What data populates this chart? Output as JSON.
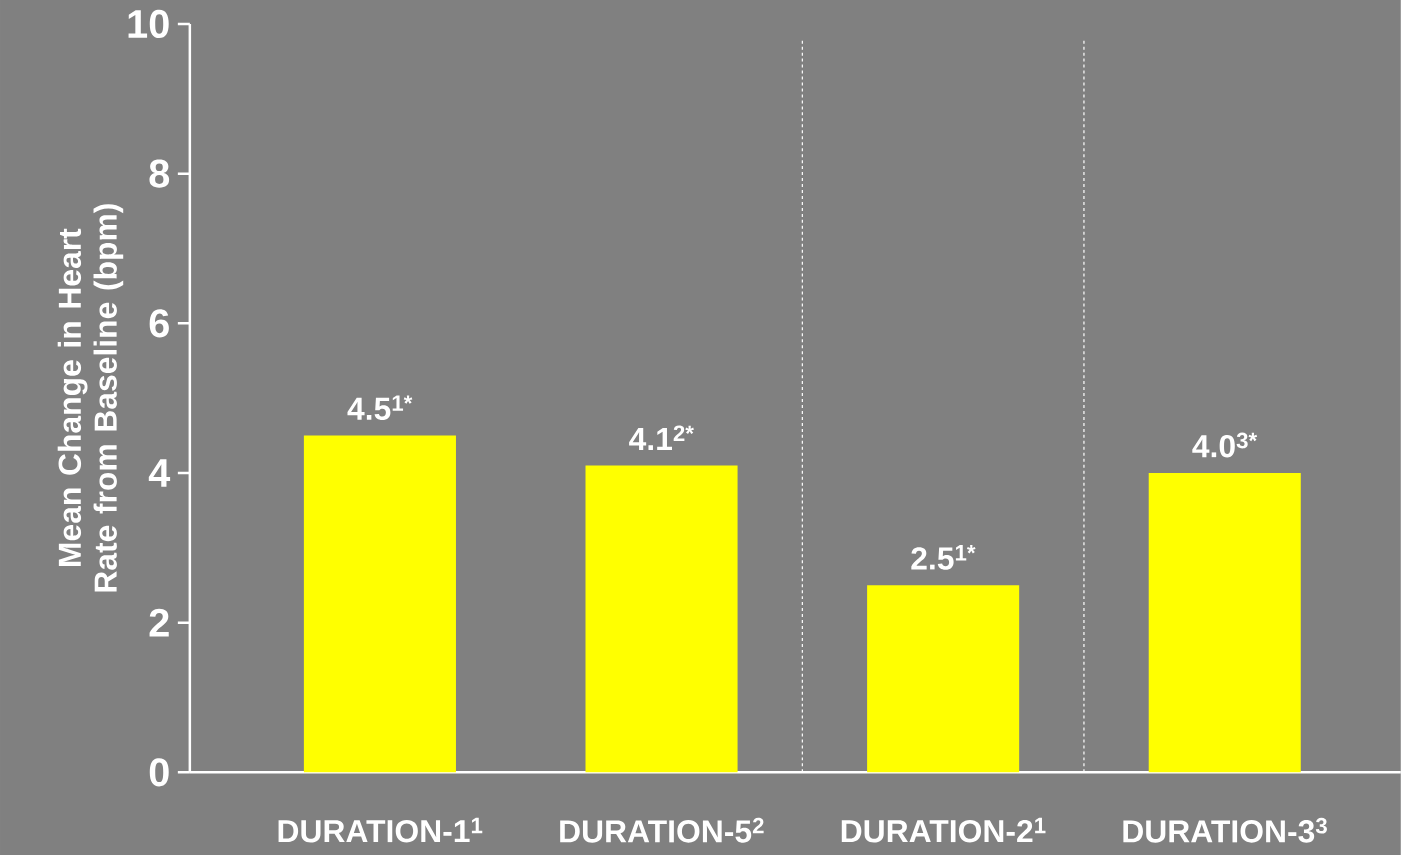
{
  "chart_data": {
    "type": "bar",
    "ylabel": "Mean Change in Heart Rate from Baseline (bpm)",
    "categories": [
      "DURATION-1$^{1}$",
      "DURATION-5$^{2}$",
      "DURATION-2$^{1}$",
      "DURATION-3$^{3}$"
    ],
    "values": [
      4.5,
      4.1,
      2.5,
      4.0
    ],
    "value_labels": [
      "4.5$^{1*}$",
      "4.1$^{2*}$",
      "2.5$^{1*}$",
      "4.0$^{3*}$"
    ],
    "color": "#ffff00",
    "ylim": [
      0,
      10
    ],
    "yticks": [
      0,
      2,
      4,
      6,
      8,
      10
    ],
    "grid": false
  }
}
